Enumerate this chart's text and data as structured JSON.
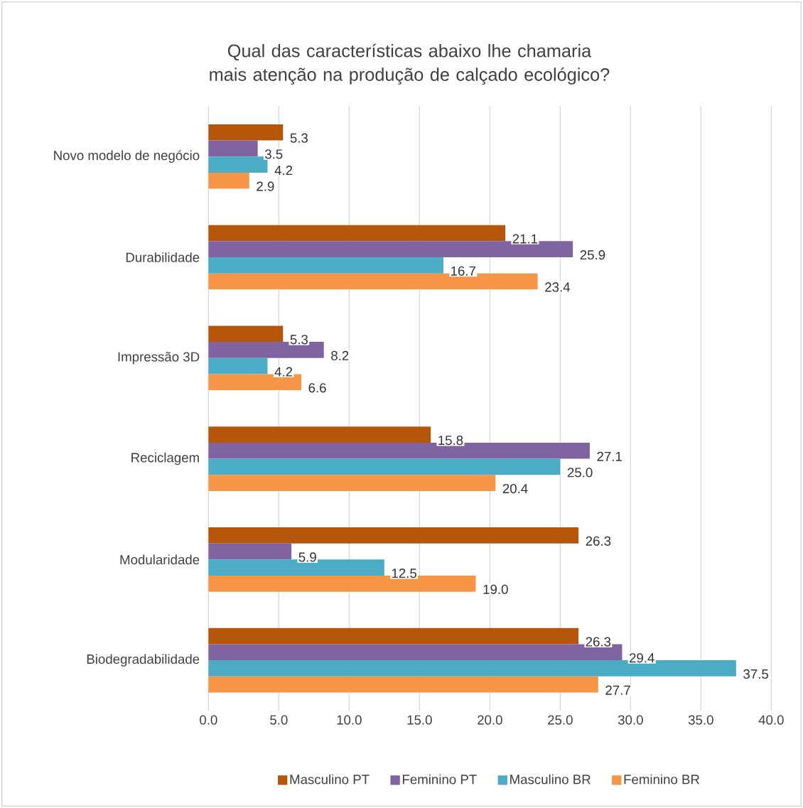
{
  "chart_data": {
    "type": "bar",
    "orientation": "horizontal",
    "title": "Qual das características abaixo lhe chamaria mais atenção na produção de calçado ecológico?",
    "categories": [
      "Novo modelo de negócio",
      "Durabilidade",
      "Impressão 3D",
      "Reciclagem",
      "Modularidade",
      "Biodegradabilidade"
    ],
    "series": [
      {
        "name": "Masculino PT",
        "color": "#b5560b",
        "values": [
          5.3,
          21.1,
          5.3,
          15.8,
          26.3,
          26.3
        ],
        "value_labels": [
          "5.3",
          "21.1",
          "5.3",
          "15.8",
          "26.3",
          "26.3"
        ]
      },
      {
        "name": "Feminino PT",
        "color": "#8064a2",
        "values": [
          3.5,
          25.9,
          8.2,
          27.1,
          5.9,
          29.4
        ],
        "value_labels": [
          "3.5",
          "25.9",
          "8.2",
          "27.1",
          "5.9",
          "29.4"
        ]
      },
      {
        "name": "Masculino BR",
        "color": "#4bacc6",
        "values": [
          4.2,
          16.7,
          4.2,
          25.0,
          12.5,
          37.5
        ],
        "value_labels": [
          "4.2",
          "16.7",
          "4.2",
          "25.0",
          "12.5",
          "37.5"
        ]
      },
      {
        "name": "Feminino BR",
        "color": "#f79646",
        "values": [
          2.9,
          23.4,
          6.6,
          20.4,
          19.0,
          27.7
        ],
        "value_labels": [
          "2.9",
          "23.4",
          "6.6",
          "20.4",
          "19.0",
          "27.7"
        ]
      }
    ],
    "xlim": [
      0,
      40
    ],
    "xticks": [
      {
        "value": 0,
        "label": "0.0"
      },
      {
        "value": 5,
        "label": "5.0"
      },
      {
        "value": 10,
        "label": "10.0"
      },
      {
        "value": 15,
        "label": "15.0"
      },
      {
        "value": 20,
        "label": "20.0"
      },
      {
        "value": 25,
        "label": "25.0"
      },
      {
        "value": 30,
        "label": "30.0"
      },
      {
        "value": 35,
        "label": "35.0"
      },
      {
        "value": 40,
        "label": "40.0"
      }
    ],
    "grid": "x",
    "legend": "bottom"
  }
}
